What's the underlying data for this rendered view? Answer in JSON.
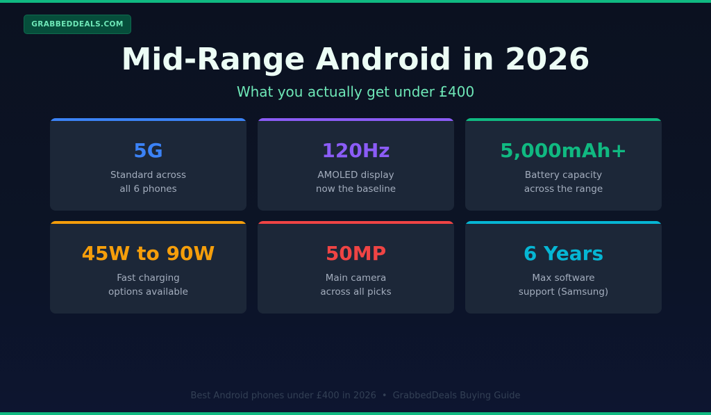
{
  "colors": {
    "brand_green": "#10b981",
    "badge_bg": "#064e3b",
    "badge_text": "#6ee7b7",
    "subtitle": "#6ee7b7"
  },
  "badge": {
    "label": "GRABBEDDEALS.COM"
  },
  "header": {
    "title": "Mid-Range Android in 2026",
    "subtitle": "What you actually get under £400"
  },
  "cards": [
    {
      "value": "5G",
      "line1": "Standard across",
      "line2": "all 6 phones",
      "color": "#3b82f6"
    },
    {
      "value": "120Hz",
      "line1": "AMOLED display",
      "line2": "now the baseline",
      "color": "#8b5cf6"
    },
    {
      "value": "5,000mAh+",
      "line1": "Battery capacity",
      "line2": "across the range",
      "color": "#10b981"
    },
    {
      "value": "45W to 90W",
      "line1": "Fast charging",
      "line2": "options available",
      "color": "#f59e0b"
    },
    {
      "value": "50MP",
      "line1": "Main camera",
      "line2": "across all picks",
      "color": "#ef4444"
    },
    {
      "value": "6 Years",
      "line1": "Max software",
      "line2": "support (Samsung)",
      "color": "#06b6d4"
    }
  ],
  "footer": {
    "left": "Best Android phones under £400 in 2026",
    "separator": "•",
    "right": "GrabbedDeals Buying Guide"
  }
}
